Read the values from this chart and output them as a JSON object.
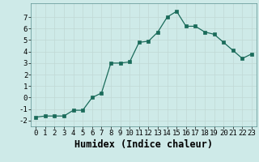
{
  "x": [
    0,
    1,
    2,
    3,
    4,
    5,
    6,
    7,
    8,
    9,
    10,
    11,
    12,
    13,
    14,
    15,
    16,
    17,
    18,
    19,
    20,
    21,
    22,
    23
  ],
  "y": [
    -1.7,
    -1.6,
    -1.6,
    -1.6,
    -1.1,
    -1.1,
    0.0,
    0.4,
    3.0,
    3.0,
    3.1,
    4.8,
    4.9,
    5.7,
    7.0,
    7.5,
    6.2,
    6.2,
    5.7,
    5.5,
    4.8,
    4.1,
    3.4,
    3.8
  ],
  "xlabel": "Humidex (Indice chaleur)",
  "xlim": [
    -0.5,
    23.5
  ],
  "ylim": [
    -2.5,
    8.2
  ],
  "yticks": [
    -2,
    -1,
    0,
    1,
    2,
    3,
    4,
    5,
    6,
    7
  ],
  "xticks": [
    0,
    1,
    2,
    3,
    4,
    5,
    6,
    7,
    8,
    9,
    10,
    11,
    12,
    13,
    14,
    15,
    16,
    17,
    18,
    19,
    20,
    21,
    22,
    23
  ],
  "line_color": "#1a6b5a",
  "marker_color": "#1a6b5a",
  "bg_color": "#ceeae8",
  "grid_color": "#c0d8d5",
  "tick_fontsize": 6.5,
  "xlabel_fontsize": 8.5
}
